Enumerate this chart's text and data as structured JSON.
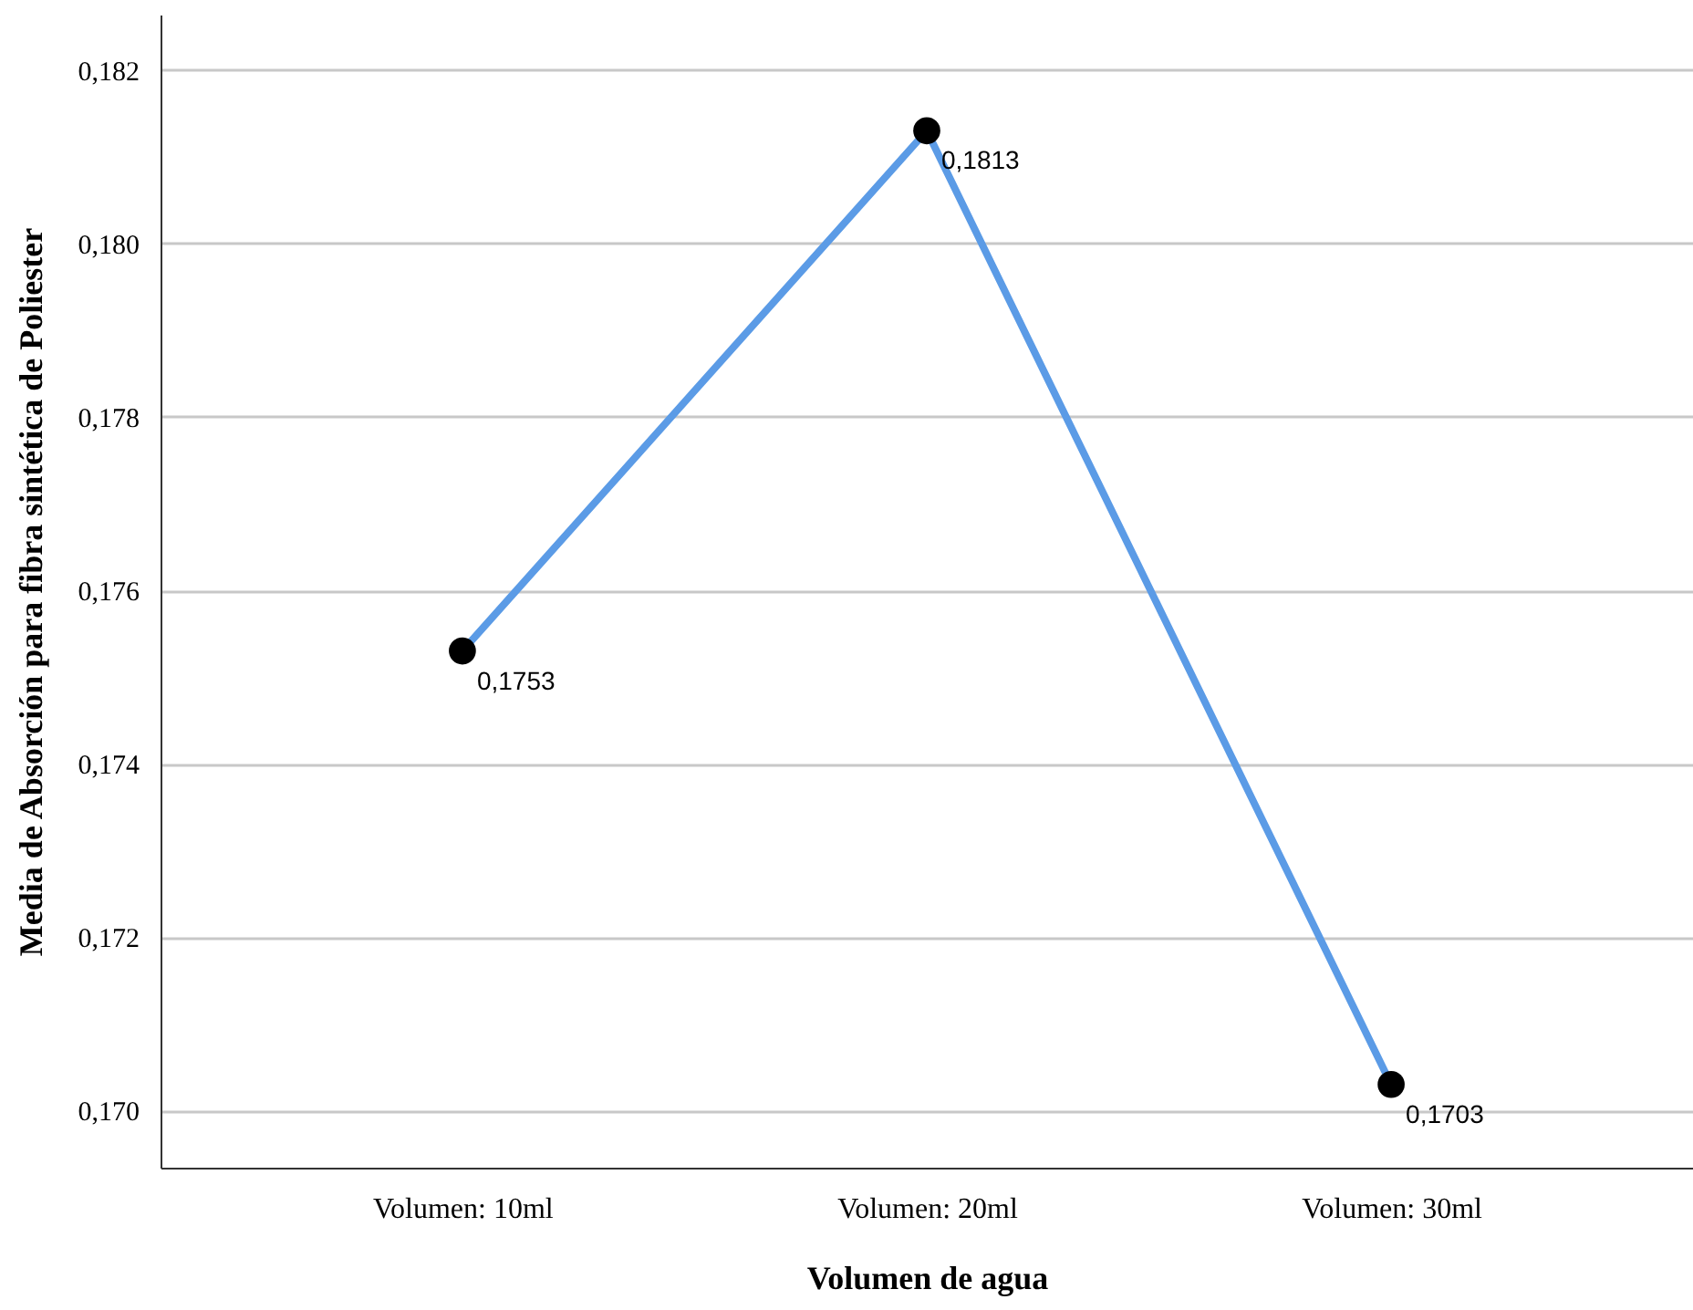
{
  "chart_data": {
    "type": "line",
    "xlabel": "Volumen de agua",
    "ylabel": "Media de Absorción para fibra sintética de Poliester",
    "categories": [
      "Volumen: 10ml",
      "Volumen: 20ml",
      "Volumen: 30ml"
    ],
    "series": [
      {
        "color": "#5b9be6",
        "values": [
          0.1753,
          0.1813,
          0.1703
        ],
        "value_labels": [
          "0,1753",
          "0,1813",
          "0,1703"
        ]
      }
    ],
    "ylim": [
      0.16934,
      0.18264
    ],
    "yticks": [
      {
        "value": 0.17,
        "label": "0,170"
      },
      {
        "value": 0.172,
        "label": "0,172"
      },
      {
        "value": 0.174,
        "label": "0,174"
      },
      {
        "value": 0.176,
        "label": "0,176"
      },
      {
        "value": 0.178,
        "label": "0,178"
      },
      {
        "value": 0.18,
        "label": "0,180"
      },
      {
        "value": 0.182,
        "label": "0,182"
      }
    ],
    "grid": "y",
    "marker": "circle",
    "line_style": "solid"
  }
}
